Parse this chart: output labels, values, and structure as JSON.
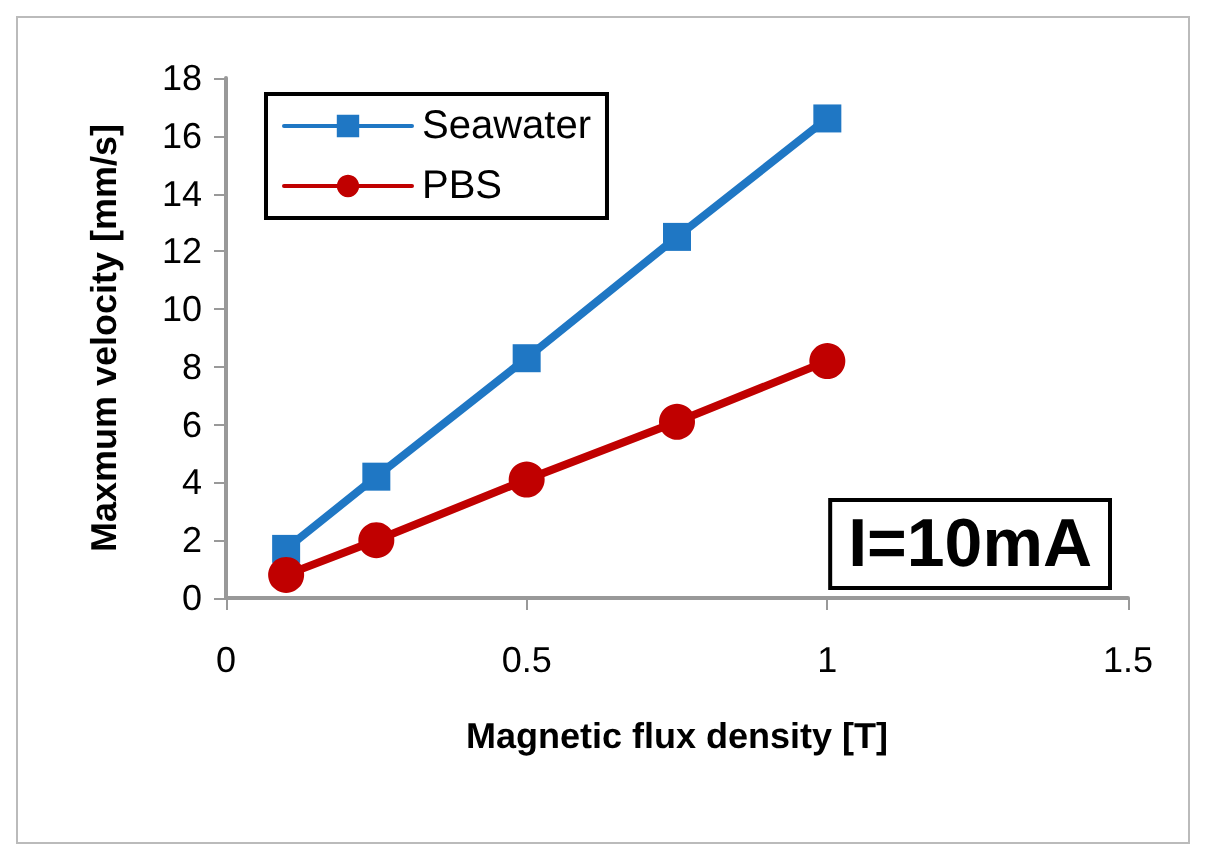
{
  "chart_data": {
    "type": "line",
    "xlabel": "Magnetic flux density [T]",
    "ylabel": "Maxmum velocity [mm/s]",
    "x": [
      0.1,
      0.25,
      0.5,
      0.75,
      1
    ],
    "series": [
      {
        "name": "Seawater",
        "color": "#1f77c4",
        "marker": "square",
        "values": [
          1.7,
          4.2,
          8.3,
          12.5,
          16.6
        ]
      },
      {
        "name": "PBS",
        "color": "#c00000",
        "marker": "circle",
        "values": [
          0.8,
          2.0,
          4.1,
          6.1,
          8.2
        ]
      }
    ],
    "xlim": [
      0,
      1.5
    ],
    "xticks": [
      0,
      0.5,
      1,
      1.5
    ],
    "ylim": [
      0,
      18
    ],
    "yticks": [
      0,
      2,
      4,
      6,
      8,
      10,
      12,
      14,
      16,
      18
    ],
    "grid": false,
    "legend": "top left",
    "annotations": [
      "I=10mA"
    ]
  }
}
